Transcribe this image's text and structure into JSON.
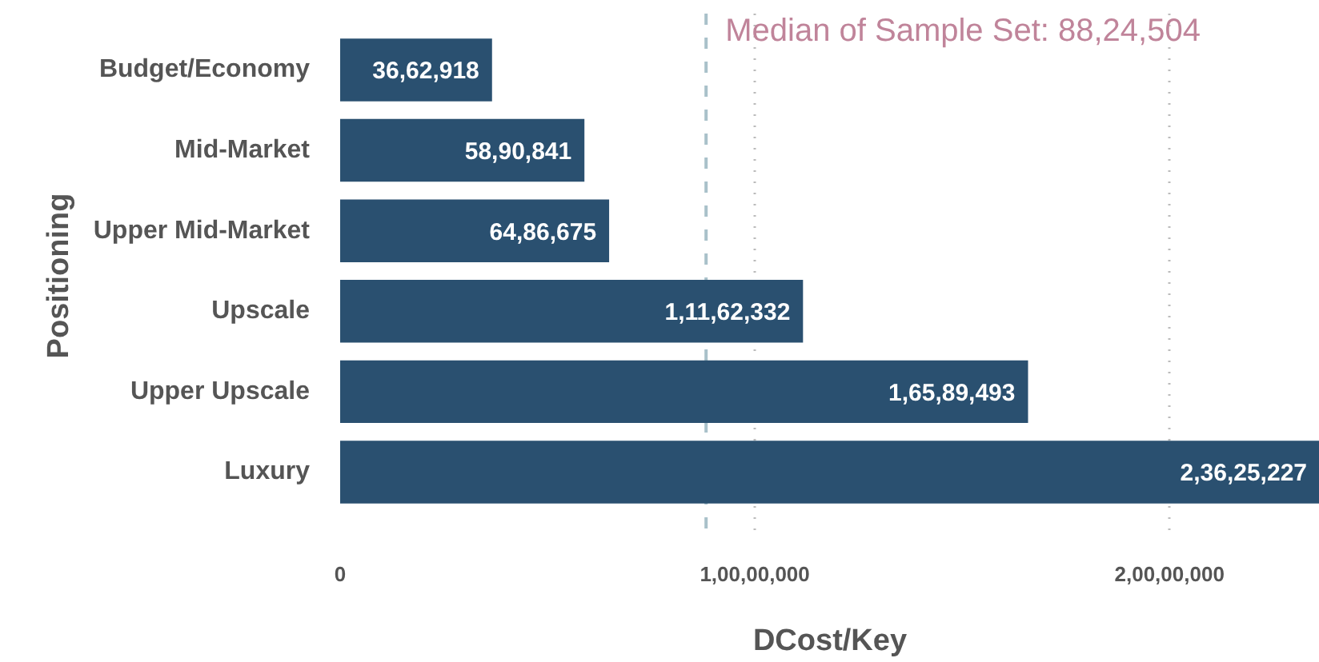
{
  "chart_data": {
    "type": "bar",
    "orientation": "horizontal",
    "xlabel": "DCost/Key",
    "ylabel": "Positioning",
    "categories": [
      "Budget/Economy",
      "Mid-Market",
      "Upper Mid-Market",
      "Upscale",
      "Upper Upscale",
      "Luxury"
    ],
    "values": [
      3662918,
      5890841,
      6486675,
      11162332,
      16589493,
      23625227
    ],
    "value_labels": [
      "36,62,918",
      "58,90,841",
      "64,86,675",
      "1,11,62,332",
      "1,65,89,493",
      "2,36,25,227"
    ],
    "color": "#2a5070",
    "xlim": [
      0,
      23625227
    ],
    "xticks": [
      0,
      {
        "value": 10000000,
        "label": "1,00,00,000"
      },
      {
        "value": 20000000,
        "label": "2,00,00,000"
      }
    ],
    "grid": "x",
    "ref_lines": [
      {
        "axis": "x",
        "value": 8824504,
        "label": "Median of Sample Set: 88,24,504",
        "color": "#a9c1ca",
        "line_style": "dashed"
      }
    ]
  }
}
